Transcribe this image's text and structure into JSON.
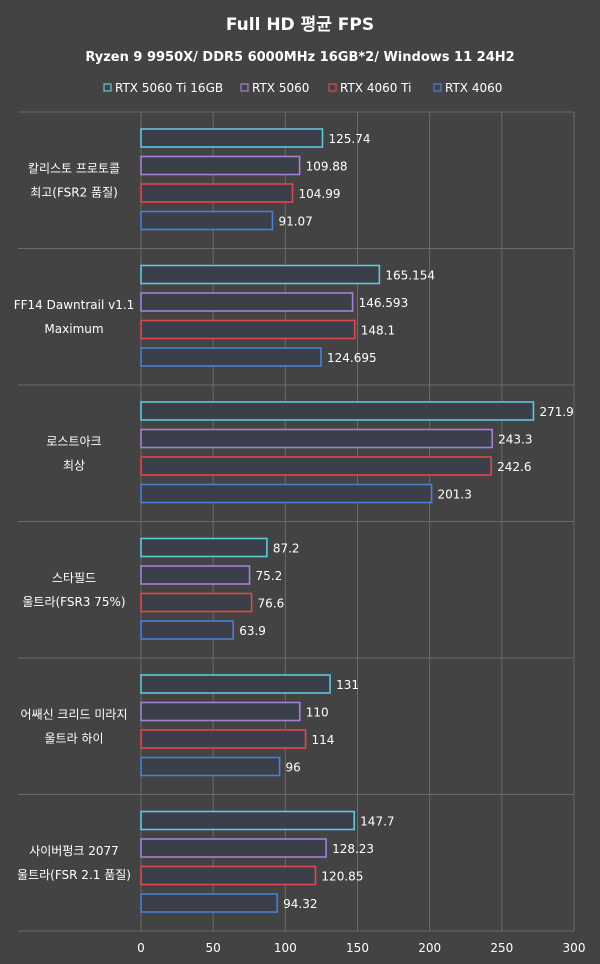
{
  "chart_data": {
    "type": "bar",
    "orientation": "horizontal",
    "title": "Full HD 평균 FPS",
    "subtitle": "Ryzen 9 9950X/ DDR5 6000MHz 16GB*2/ Windows 11 24H2",
    "categories": [
      [
        "칼리스토 프로토콜",
        "최고(FSR2 품질)"
      ],
      [
        "FF14 Dawntrail v1.1",
        "Maximum"
      ],
      [
        "로스트아크",
        "최상"
      ],
      [
        "스타필드",
        "울트라(FSR3 75%)"
      ],
      [
        "어쌔신 크리드 미라지",
        "울트라 하이"
      ],
      [
        "사이버펑크 2077",
        "울트라(FSR 2.1 품질)"
      ]
    ],
    "series": [
      {
        "name": "RTX 5060 Ti 16GB",
        "color": "#5ec8d8",
        "values": [
          125.74,
          165.154,
          271.9,
          87.2,
          131,
          147.7
        ],
        "labels": [
          "125.74",
          "165.154",
          "271.9",
          "87.2",
          "131",
          "147.7"
        ]
      },
      {
        "name": "RTX 5060",
        "color": "#a67fd6",
        "values": [
          109.88,
          146.593,
          243.3,
          75.2,
          110,
          128.23
        ],
        "labels": [
          "109.88",
          "146.593",
          "243.3",
          "75.2",
          "110",
          "128.23"
        ]
      },
      {
        "name": "RTX 4060 Ti",
        "color": "#e0474b",
        "values": [
          104.99,
          148.1,
          242.6,
          76.6,
          114,
          120.85
        ],
        "labels": [
          "104.99",
          "148.1",
          "242.6",
          "76.6",
          "114",
          "120.85"
        ]
      },
      {
        "name": "RTX 4060",
        "color": "#4a7fd6",
        "values": [
          91.07,
          124.695,
          201.3,
          63.9,
          96,
          94.32
        ],
        "labels": [
          "91.07",
          "124.695",
          "201.3",
          "63.9",
          "96",
          "94.32"
        ]
      }
    ],
    "xlim": [
      0,
      300
    ],
    "xticks": [
      "0",
      "50",
      "100",
      "150",
      "200",
      "250",
      "300"
    ],
    "grid": true,
    "legend": "top-center"
  },
  "colors": {
    "background": "#434343",
    "plot_background": "#434343",
    "grid": "#6a6a6a",
    "bar_fill": "#3a3f4a"
  }
}
